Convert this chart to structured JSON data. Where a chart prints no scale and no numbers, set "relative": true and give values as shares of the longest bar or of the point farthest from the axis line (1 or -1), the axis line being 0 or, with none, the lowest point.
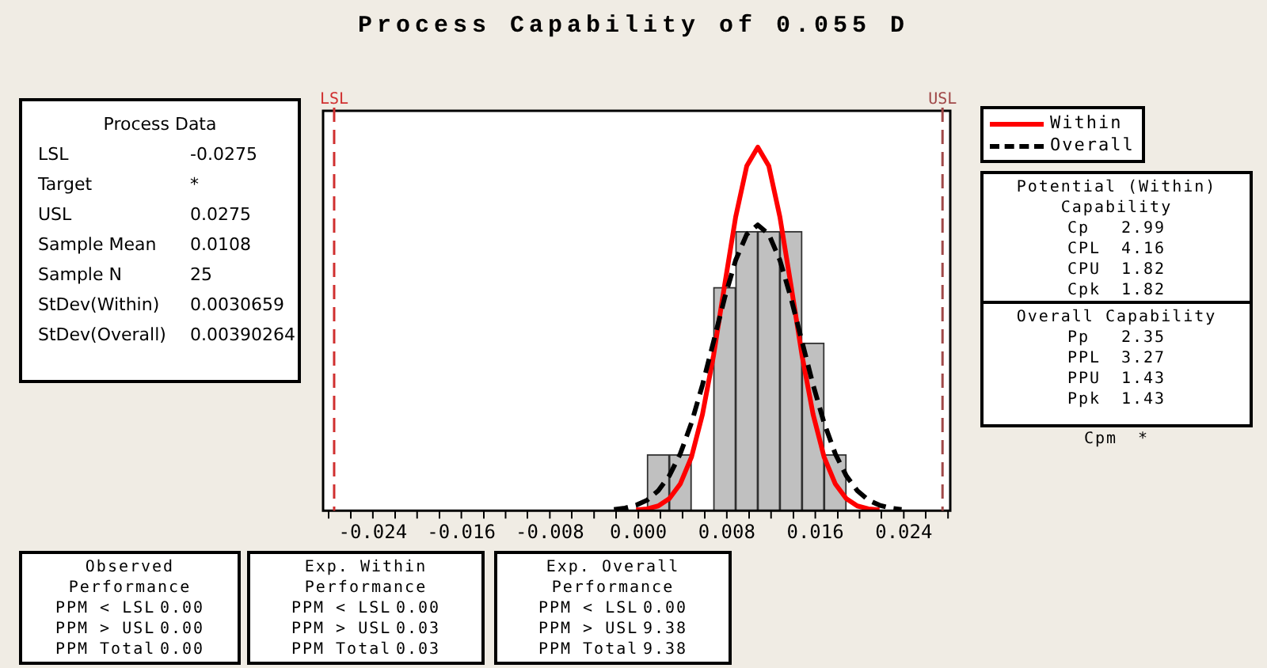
{
  "chart_data": {
    "type": "histogram",
    "title": "Process Capability of 0.055 D",
    "relative": true,
    "bins": [
      0.0008,
      0.0028,
      0.0048,
      0.0068,
      0.0088,
      0.0108,
      0.0128,
      0.0148,
      0.0168,
      0.0188
    ],
    "values": [
      0.154,
      0.154,
      0,
      0.614,
      0.768,
      0.768,
      0.768,
      0.461,
      0.154
    ],
    "color": "#c0c0c0",
    "series": [
      {
        "name": "Within",
        "type": "line",
        "color": "#ff0000",
        "line_style": "solid",
        "x": [
          -0.0002,
          0.0008,
          0.0018,
          0.0028,
          0.0038,
          0.0048,
          0.0058,
          0.0068,
          0.0078,
          0.0088,
          0.0098,
          0.0108,
          0.0118,
          0.0128,
          0.0138,
          0.0148,
          0.0158,
          0.0168,
          0.0178,
          0.0188,
          0.0198,
          0.0208,
          0.0218
        ],
        "values": [
          0.002,
          0.005,
          0.013,
          0.033,
          0.074,
          0.147,
          0.265,
          0.427,
          0.62,
          0.808,
          0.948,
          1,
          0.948,
          0.808,
          0.62,
          0.427,
          0.265,
          0.147,
          0.074,
          0.033,
          0.013,
          0.005,
          0.002
        ]
      },
      {
        "name": "Overall",
        "type": "line",
        "color": "#000000",
        "line_style": "dashed",
        "x": [
          -0.0022,
          -0.0012,
          -0.0002,
          0.0008,
          0.0018,
          0.0028,
          0.0038,
          0.0048,
          0.0058,
          0.0068,
          0.0078,
          0.0088,
          0.0098,
          0.0108,
          0.0118,
          0.0128,
          0.0138,
          0.0148,
          0.0158,
          0.0168,
          0.0178,
          0.0188,
          0.0198,
          0.0208,
          0.0218,
          0.0228,
          0.0238
        ],
        "values": [
          0.003,
          0.007,
          0.015,
          0.029,
          0.055,
          0.096,
          0.157,
          0.241,
          0.346,
          0.465,
          0.585,
          0.689,
          0.76,
          0.786,
          0.76,
          0.689,
          0.585,
          0.465,
          0.346,
          0.241,
          0.157,
          0.096,
          0.055,
          0.029,
          0.015,
          0.007,
          0.003
        ]
      }
    ],
    "xlim": [
      -0.0285,
      0.0282
    ],
    "xticks": [
      {
        "value": -0.028,
        "label": null
      },
      {
        "value": -0.024,
        "label": "-0.024"
      },
      {
        "value": -0.02,
        "label": null
      },
      {
        "value": -0.016,
        "label": "-0.016"
      },
      {
        "value": -0.012,
        "label": null
      },
      {
        "value": -0.008,
        "label": "-0.008"
      },
      {
        "value": -0.004,
        "label": null
      },
      {
        "value": 0,
        "label": "0.000"
      },
      {
        "value": 0.004,
        "label": null
      },
      {
        "value": 0.008,
        "label": "0.008"
      },
      {
        "value": 0.012,
        "label": null
      },
      {
        "value": 0.016,
        "label": "0.016"
      },
      {
        "value": 0.02,
        "label": null
      },
      {
        "value": 0.024,
        "label": "0.024"
      },
      {
        "value": 0.028,
        "label": null
      }
    ],
    "ref_lines": [
      {
        "axis": "x",
        "value": -0.0275,
        "label": "LSL",
        "color": "#d03030",
        "line_style": "dashed"
      },
      {
        "axis": "x",
        "value": 0.0275,
        "label": "USL",
        "color": "#a04848",
        "line_style": "dashed"
      }
    ],
    "grid": false,
    "legend": "top right",
    "marker": "none",
    "annotations": [
      "Process Data\nLSL\t-0.0275\nTarget\t*\nUSL\t0.0275\nSample Mean\t0.0108\nSample N\t25\nStDev(Within)\t0.0030659\nStDev(Overall)\t0.00390264",
      "Potential (Within)\nCapability\nCp\t2.99\nCPL\t4.16\nCPU\t1.82\nCpk\t1.82",
      "Overall Capability\nPp\t2.35\nPPL\t3.27\nPPU\t1.43\nPpk\t1.43",
      "Cpm\t*",
      "Observed\nPerformance\nPPM < LSL\t0.00\nPPM > USL\t0.00\nPPM Total\t0.00",
      "Exp. Within\nPerformance\nPPM < LSL\t0.00\nPPM > USL\t0.03\nPPM Total\t0.03",
      "Exp. Overall\nPerformance\nPPM < LSL\t0.00\nPPM > USL\t9.38\nPPM Total\t9.38"
    ]
  }
}
